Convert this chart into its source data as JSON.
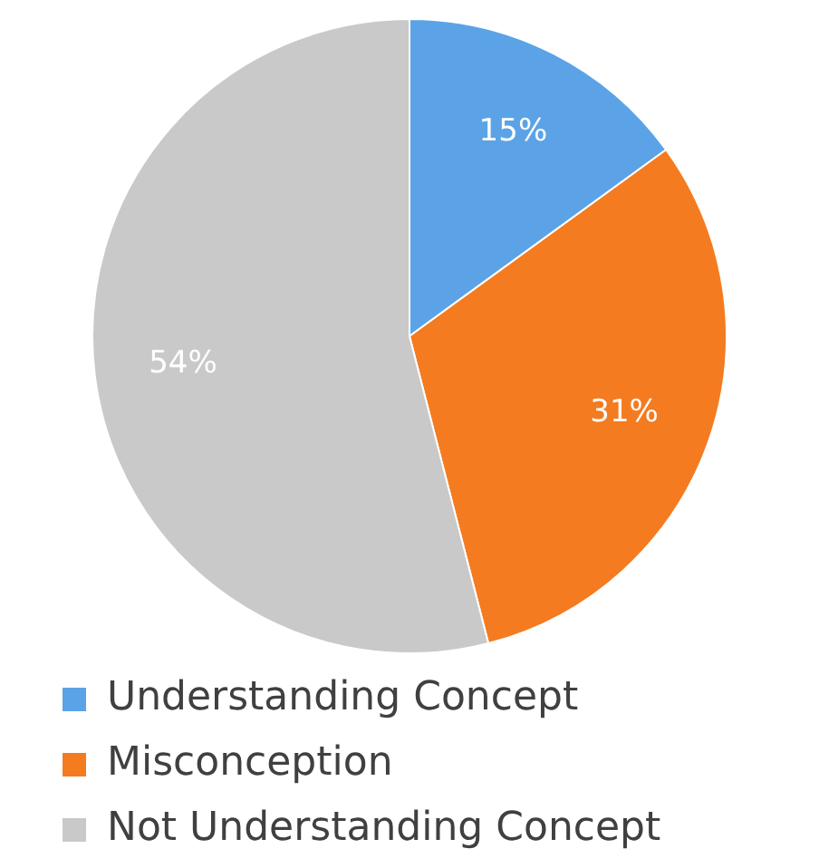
{
  "chart_data": {
    "type": "pie",
    "categories": [
      "Understanding Concept",
      "Misconception",
      "Not Understanding Concept"
    ],
    "values": [
      15,
      31,
      54
    ],
    "colors": [
      "#5ba3e6",
      "#f47b20",
      "#c9c9c9"
    ],
    "value_labels": [
      "15%",
      "31%",
      "54%"
    ],
    "legend": "bottom"
  }
}
